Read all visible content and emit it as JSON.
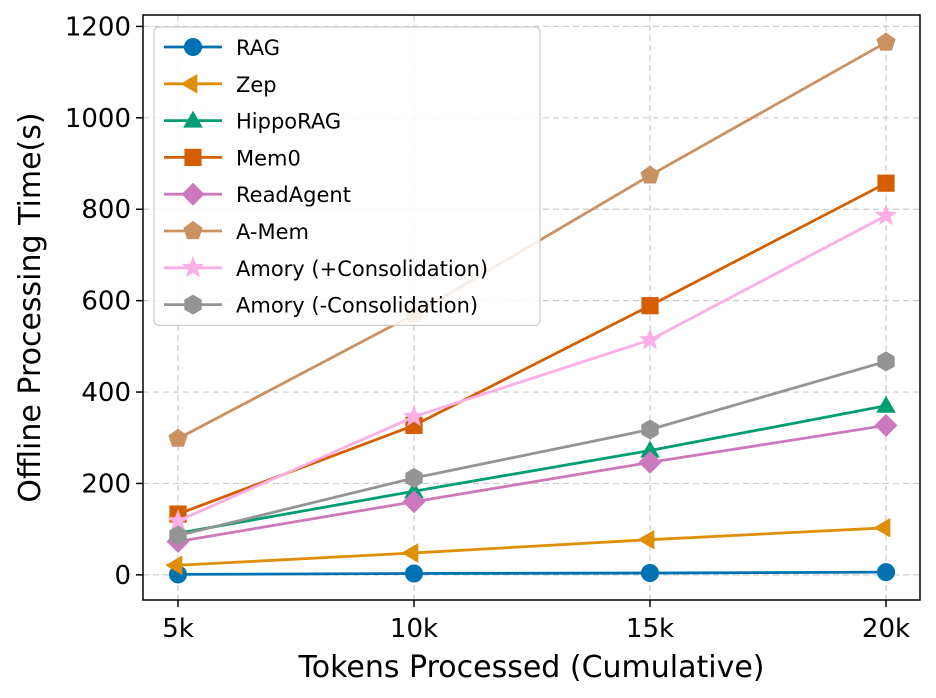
{
  "chart_data": {
    "type": "line",
    "xlabel": "Tokens Processed (Cumulative)",
    "ylabel": "Offline Processing Time(s)",
    "categories": [
      "5k",
      "10k",
      "15k",
      "20k"
    ],
    "ylim": [
      -55,
      1225
    ],
    "yticks": [
      0,
      200,
      400,
      600,
      800,
      1000,
      1200
    ],
    "grid": true,
    "legend_position": "top-left",
    "series": [
      {
        "name": "RAG",
        "color": "#0072b2",
        "marker": "circle",
        "values": [
          1,
          3,
          4,
          6
        ]
      },
      {
        "name": "Zep",
        "color": "#de8f05",
        "marker": "triangle-left",
        "values": [
          21,
          48,
          77,
          103
        ]
      },
      {
        "name": "HippoRAG",
        "color": "#029e73",
        "marker": "triangle-up",
        "values": [
          91,
          183,
          272,
          370
        ]
      },
      {
        "name": "Mem0",
        "color": "#d55e00",
        "marker": "square",
        "values": [
          133,
          327,
          589,
          857
        ]
      },
      {
        "name": "ReadAgent",
        "color": "#cc78bc",
        "marker": "diamond",
        "values": [
          73,
          160,
          246,
          327
        ]
      },
      {
        "name": "A-Mem",
        "color": "#ca9161",
        "marker": "pentagon",
        "values": [
          298,
          570,
          874,
          1165
        ]
      },
      {
        "name": "Amory (+Consolidation)",
        "color": "#fbafe4",
        "marker": "star",
        "values": [
          118,
          346,
          514,
          786
        ]
      },
      {
        "name": "Amory (-Consolidation)",
        "color": "#949494",
        "marker": "hexagon",
        "values": [
          86,
          212,
          318,
          467
        ]
      }
    ]
  }
}
